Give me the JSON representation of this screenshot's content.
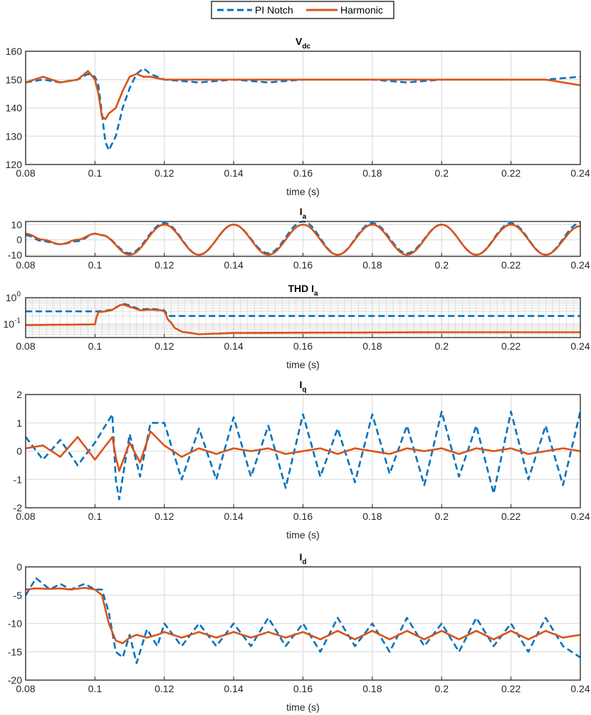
{
  "colors": {
    "pi_notch": "#0072BD",
    "harmonic": "#D95319",
    "grid": "#e3e3e3",
    "axis": "#262626"
  },
  "legend": {
    "entries": [
      {
        "label": "PI Notch",
        "style": "dashed"
      },
      {
        "label": "Harmonic",
        "style": "solid"
      }
    ]
  },
  "chart_data": [
    {
      "id": "vdc",
      "type": "line",
      "title": "V",
      "title_sub": "dc",
      "xlabel": "time (s)",
      "ylabel": "",
      "xlim": [
        0.08,
        0.24
      ],
      "ylim": [
        120,
        160
      ],
      "xticks": [
        0.08,
        0.1,
        0.12,
        0.14,
        0.16,
        0.18,
        0.2,
        0.22,
        0.24
      ],
      "yticks": [
        120,
        130,
        140,
        150,
        160
      ],
      "xtick_labels": [
        "0.08",
        "0.1",
        "0.12",
        "0.14",
        "0.16",
        "0.18",
        "0.2",
        "0.22",
        "0.24"
      ],
      "ytick_labels": [
        "120",
        "130",
        "140",
        "150",
        "160"
      ],
      "series": [
        {
          "name": "PI Notch",
          "x": [
            0.08,
            0.085,
            0.09,
            0.095,
            0.098,
            0.1,
            0.101,
            0.102,
            0.103,
            0.104,
            0.106,
            0.108,
            0.11,
            0.112,
            0.114,
            0.116,
            0.12,
            0.13,
            0.14,
            0.15,
            0.16,
            0.17,
            0.18,
            0.19,
            0.2,
            0.21,
            0.22,
            0.23,
            0.24
          ],
          "values": [
            149,
            150,
            149,
            150,
            152,
            151,
            148,
            138,
            128,
            125,
            130,
            140,
            147,
            152,
            154,
            152,
            150,
            149,
            150,
            149,
            150,
            150,
            150,
            149,
            150,
            150,
            150,
            150,
            151
          ]
        },
        {
          "name": "Harmonic",
          "x": [
            0.08,
            0.085,
            0.09,
            0.095,
            0.098,
            0.1,
            0.101,
            0.102,
            0.103,
            0.104,
            0.106,
            0.108,
            0.11,
            0.112,
            0.114,
            0.116,
            0.12,
            0.13,
            0.14,
            0.15,
            0.16,
            0.17,
            0.18,
            0.19,
            0.2,
            0.21,
            0.22,
            0.23,
            0.24
          ],
          "values": [
            149,
            151,
            149,
            150,
            153,
            150,
            145,
            137,
            136,
            138,
            140,
            146,
            151,
            152,
            151,
            151,
            150,
            150,
            150,
            150,
            150,
            150,
            150,
            150,
            150,
            150,
            150,
            150,
            148
          ]
        }
      ]
    },
    {
      "id": "ia",
      "type": "line",
      "title": "I",
      "title_sub": "a",
      "xlabel": "",
      "ylabel": "",
      "xlim": [
        0.08,
        0.24
      ],
      "ylim": [
        -11,
        12
      ],
      "xticks": [
        0.08,
        0.1,
        0.12,
        0.14,
        0.16,
        0.18,
        0.2,
        0.22,
        0.24
      ],
      "yticks": [
        -10,
        0,
        10
      ],
      "xtick_labels": [
        "0.08",
        "0.1",
        "0.12",
        "0.14",
        "0.16",
        "0.18",
        "0.2",
        "0.22",
        "0.24"
      ],
      "ytick_labels": [
        "-10",
        "0",
        "10"
      ],
      "series": [
        {
          "name": "PI Notch",
          "x": [
            0.08,
            0.085,
            0.09,
            0.095,
            0.1,
            0.102,
            0.11,
            0.12,
            0.13,
            0.14,
            0.15,
            0.16,
            0.17,
            0.18,
            0.19,
            0.2,
            0.21,
            0.22,
            0.23,
            0.24
          ],
          "values": [
            3,
            -1,
            -3,
            -1,
            4,
            3,
            -9,
            11,
            -10,
            10,
            -9,
            12,
            -10,
            11,
            -9,
            10,
            -10,
            11,
            -10,
            11
          ]
        },
        {
          "name": "Harmonic",
          "x": [
            0.08,
            0.085,
            0.09,
            0.095,
            0.1,
            0.102,
            0.11,
            0.12,
            0.13,
            0.14,
            0.15,
            0.16,
            0.17,
            0.18,
            0.19,
            0.2,
            0.21,
            0.22,
            0.23,
            0.24
          ],
          "values": [
            4,
            0,
            -3,
            0,
            4,
            3,
            -10,
            10,
            -10,
            10,
            -10,
            10,
            -10,
            10,
            -10,
            10,
            -10,
            10,
            -10,
            9
          ]
        }
      ]
    },
    {
      "id": "thd",
      "type": "line",
      "title": "THD I",
      "title_sub": "a",
      "xlabel": "time (s)",
      "ylabel": "",
      "yscale": "log",
      "xlim": [
        0.08,
        0.24
      ],
      "ylim": [
        0.03,
        1
      ],
      "xticks": [
        0.08,
        0.1,
        0.12,
        0.14,
        0.16,
        0.18,
        0.2,
        0.22,
        0.24
      ],
      "xtick_labels": [
        "0.08",
        "0.1",
        "0.12",
        "0.14",
        "0.16",
        "0.18",
        "0.2",
        "0.22",
        "0.24"
      ],
      "ytick_labels": [
        {
          "base": "10",
          "exp": "0"
        },
        {
          "base": "10",
          "exp": "-1"
        }
      ],
      "series": [
        {
          "name": "PI Notch",
          "x": [
            0.08,
            0.1,
            0.101,
            0.103,
            0.105,
            0.107,
            0.108,
            0.11,
            0.113,
            0.116,
            0.119,
            0.12,
            0.121,
            0.13,
            0.14,
            0.16,
            0.18,
            0.2,
            0.22,
            0.24
          ],
          "values": [
            0.3,
            0.3,
            0.3,
            0.32,
            0.35,
            0.5,
            0.6,
            0.5,
            0.35,
            0.38,
            0.34,
            0.33,
            0.2,
            0.2,
            0.2,
            0.2,
            0.2,
            0.2,
            0.2,
            0.2
          ]
        },
        {
          "name": "Harmonic",
          "x": [
            0.08,
            0.1,
            0.101,
            0.103,
            0.105,
            0.107,
            0.108,
            0.11,
            0.113,
            0.116,
            0.119,
            0.12,
            0.121,
            0.123,
            0.125,
            0.13,
            0.14,
            0.16,
            0.18,
            0.2,
            0.22,
            0.24
          ],
          "values": [
            0.09,
            0.095,
            0.28,
            0.3,
            0.34,
            0.5,
            0.55,
            0.45,
            0.33,
            0.35,
            0.33,
            0.3,
            0.15,
            0.07,
            0.05,
            0.04,
            0.045,
            0.046,
            0.047,
            0.048,
            0.048,
            0.048
          ]
        }
      ]
    },
    {
      "id": "iq",
      "type": "line",
      "title": "I",
      "title_sub": "q",
      "xlabel": "time (s)",
      "ylabel": "",
      "xlim": [
        0.08,
        0.24
      ],
      "ylim": [
        -2,
        2
      ],
      "xticks": [
        0.08,
        0.1,
        0.12,
        0.14,
        0.16,
        0.18,
        0.2,
        0.22,
        0.24
      ],
      "yticks": [
        -2,
        -1,
        0,
        1,
        2
      ],
      "xtick_labels": [
        "0.08",
        "0.1",
        "0.12",
        "0.14",
        "0.16",
        "0.18",
        "0.2",
        "0.22",
        "0.24"
      ],
      "ytick_labels": [
        "-2",
        "-1",
        "0",
        "1",
        "2"
      ],
      "series": [
        {
          "name": "PI Notch",
          "x": [
            0.08,
            0.085,
            0.09,
            0.095,
            0.1,
            0.105,
            0.106,
            0.107,
            0.11,
            0.113,
            0.116,
            0.12,
            0.125,
            0.13,
            0.135,
            0.14,
            0.145,
            0.15,
            0.155,
            0.16,
            0.165,
            0.17,
            0.175,
            0.18,
            0.185,
            0.19,
            0.195,
            0.2,
            0.205,
            0.21,
            0.215,
            0.22,
            0.225,
            0.23,
            0.235,
            0.24
          ],
          "values": [
            0.5,
            -0.3,
            0.4,
            -0.5,
            0.3,
            1.3,
            -1.0,
            -1.7,
            0.6,
            -0.9,
            1.0,
            1.0,
            -1.0,
            0.8,
            -1.0,
            1.2,
            -0.9,
            0.9,
            -1.3,
            1.3,
            -0.9,
            0.8,
            -1.1,
            1.3,
            -0.8,
            0.9,
            -1.2,
            1.4,
            -0.9,
            0.9,
            -1.5,
            1.4,
            -1.0,
            0.9,
            -1.2,
            1.4
          ]
        },
        {
          "name": "Harmonic",
          "x": [
            0.08,
            0.085,
            0.09,
            0.095,
            0.1,
            0.105,
            0.106,
            0.107,
            0.11,
            0.113,
            0.116,
            0.12,
            0.125,
            0.13,
            0.135,
            0.14,
            0.145,
            0.15,
            0.155,
            0.16,
            0.165,
            0.17,
            0.175,
            0.18,
            0.185,
            0.19,
            0.195,
            0.2,
            0.205,
            0.21,
            0.215,
            0.22,
            0.225,
            0.23,
            0.235,
            0.24
          ],
          "values": [
            0.1,
            0.2,
            -0.2,
            0.5,
            -0.3,
            0.5,
            -0.2,
            -0.7,
            0.3,
            -0.4,
            0.7,
            0.2,
            -0.2,
            0.1,
            -0.1,
            0.1,
            0.0,
            0.1,
            -0.1,
            0.0,
            0.1,
            -0.1,
            0.1,
            0.0,
            -0.1,
            0.1,
            0.0,
            0.1,
            -0.1,
            0.1,
            0.0,
            0.1,
            -0.1,
            0.0,
            0.1,
            0.0
          ]
        }
      ]
    },
    {
      "id": "id",
      "type": "line",
      "title": "I",
      "title_sub": "d",
      "xlabel": "time (s)",
      "ylabel": "",
      "xlim": [
        0.08,
        0.24
      ],
      "ylim": [
        -20,
        0
      ],
      "xticks": [
        0.08,
        0.1,
        0.12,
        0.14,
        0.16,
        0.18,
        0.2,
        0.22,
        0.24
      ],
      "yticks": [
        -20,
        -15,
        -10,
        -5,
        0
      ],
      "xtick_labels": [
        "0.08",
        "0.1",
        "0.12",
        "0.14",
        "0.16",
        "0.18",
        "0.2",
        "0.22",
        "0.24"
      ],
      "ytick_labels": [
        "-20",
        "-15",
        "-10",
        "-5",
        "0"
      ],
      "series": [
        {
          "name": "PI Notch",
          "x": [
            0.08,
            0.083,
            0.087,
            0.09,
            0.093,
            0.097,
            0.1,
            0.102,
            0.104,
            0.106,
            0.108,
            0.11,
            0.112,
            0.115,
            0.118,
            0.12,
            0.125,
            0.13,
            0.135,
            0.14,
            0.145,
            0.15,
            0.155,
            0.16,
            0.165,
            0.17,
            0.175,
            0.18,
            0.185,
            0.19,
            0.195,
            0.2,
            0.205,
            0.21,
            0.215,
            0.22,
            0.225,
            0.23,
            0.235,
            0.24
          ],
          "values": [
            -5,
            -2,
            -4,
            -3,
            -4,
            -3,
            -4,
            -4,
            -8,
            -15,
            -16,
            -12,
            -17,
            -11,
            -14,
            -10,
            -14,
            -10,
            -14,
            -10,
            -14,
            -9,
            -14,
            -10,
            -15,
            -9,
            -14,
            -10,
            -15,
            -9,
            -14,
            -10,
            -15,
            -9,
            -14,
            -10,
            -15,
            -9,
            -14,
            -16
          ]
        },
        {
          "name": "Harmonic",
          "x": [
            0.08,
            0.083,
            0.087,
            0.09,
            0.093,
            0.097,
            0.1,
            0.102,
            0.104,
            0.106,
            0.108,
            0.11,
            0.112,
            0.115,
            0.118,
            0.12,
            0.125,
            0.13,
            0.135,
            0.14,
            0.145,
            0.15,
            0.155,
            0.16,
            0.165,
            0.17,
            0.175,
            0.18,
            0.185,
            0.19,
            0.195,
            0.2,
            0.205,
            0.21,
            0.215,
            0.22,
            0.225,
            0.23,
            0.235,
            0.24
          ],
          "values": [
            -4,
            -3.8,
            -3.9,
            -3.8,
            -4,
            -3.7,
            -4,
            -5,
            -10,
            -13,
            -13.5,
            -12.5,
            -12,
            -12.5,
            -12,
            -11.5,
            -12.5,
            -11.5,
            -12.5,
            -11.5,
            -12.5,
            -11.5,
            -12.5,
            -11.5,
            -12.8,
            -11.3,
            -12.8,
            -11.3,
            -12.8,
            -11.3,
            -12.8,
            -11.3,
            -12.8,
            -11.3,
            -12.8,
            -11.3,
            -12.8,
            -11.3,
            -12.5,
            -12
          ]
        }
      ]
    }
  ]
}
